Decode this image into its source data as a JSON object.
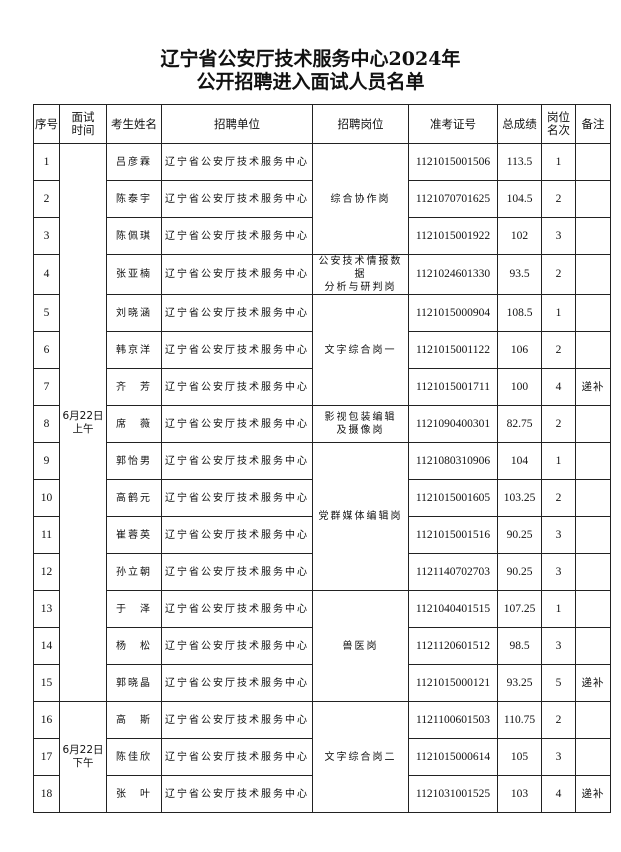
{
  "title": {
    "line1": "辽宁省公安厅技术服务中心2024年",
    "line2": "公开招聘进入面试人员名单"
  },
  "headers": [
    "序号",
    "面试\n时间",
    "考生姓名",
    "招聘单位",
    "招聘岗位",
    "准考证号",
    "总成绩",
    "岗位\n名次",
    "备注"
  ],
  "time_groups": [
    {
      "label": "6月22日\n上午",
      "rows": 15
    },
    {
      "label": "6月22日\n下午",
      "rows": 3
    }
  ],
  "position_groups": [
    {
      "label": "综合协作岗",
      "rows": 3
    },
    {
      "label": "公安技术情报数据\n分析与研判岗",
      "rows": 1
    },
    {
      "label": "文字综合岗一",
      "rows": 3
    },
    {
      "label": "影视包装编辑\n及摄像岗",
      "rows": 1
    },
    {
      "label": "党群媒体编辑岗",
      "rows": 4
    },
    {
      "label": "兽医岗",
      "rows": 3
    },
    {
      "label": "文字综合岗二",
      "rows": 3
    }
  ],
  "rows": [
    {
      "no": "1",
      "name": "吕彦霖",
      "unit": "辽宁省公安厅技术服务中心",
      "id": "1121015001506",
      "score": "113.5",
      "rank": "1",
      "note": ""
    },
    {
      "no": "2",
      "name": "陈泰宇",
      "unit": "辽宁省公安厅技术服务中心",
      "id": "1121070701625",
      "score": "104.5",
      "rank": "2",
      "note": ""
    },
    {
      "no": "3",
      "name": "陈佩琪",
      "unit": "辽宁省公安厅技术服务中心",
      "id": "1121015001922",
      "score": "102",
      "rank": "3",
      "note": ""
    },
    {
      "no": "4",
      "name": "张亚楠",
      "unit": "辽宁省公安厅技术服务中心",
      "id": "1121024601330",
      "score": "93.5",
      "rank": "2",
      "note": ""
    },
    {
      "no": "5",
      "name": "刘晓涵",
      "unit": "辽宁省公安厅技术服务中心",
      "id": "1121015000904",
      "score": "108.5",
      "rank": "1",
      "note": ""
    },
    {
      "no": "6",
      "name": "韩京洋",
      "unit": "辽宁省公安厅技术服务中心",
      "id": "1121015001122",
      "score": "106",
      "rank": "2",
      "note": ""
    },
    {
      "no": "7",
      "name": "齐　芳",
      "unit": "辽宁省公安厅技术服务中心",
      "id": "1121015001711",
      "score": "100",
      "rank": "4",
      "note": "递补"
    },
    {
      "no": "8",
      "name": "席　薇",
      "unit": "辽宁省公安厅技术服务中心",
      "id": "1121090400301",
      "score": "82.75",
      "rank": "2",
      "note": ""
    },
    {
      "no": "9",
      "name": "郭怡男",
      "unit": "辽宁省公安厅技术服务中心",
      "id": "1121080310906",
      "score": "104",
      "rank": "1",
      "note": ""
    },
    {
      "no": "10",
      "name": "高鹤元",
      "unit": "辽宁省公安厅技术服务中心",
      "id": "1121015001605",
      "score": "103.25",
      "rank": "2",
      "note": ""
    },
    {
      "no": "11",
      "name": "崔蓉英",
      "unit": "辽宁省公安厅技术服务中心",
      "id": "1121015001516",
      "score": "90.25",
      "rank": "3",
      "note": ""
    },
    {
      "no": "12",
      "name": "孙立朝",
      "unit": "辽宁省公安厅技术服务中心",
      "id": "1121140702703",
      "score": "90.25",
      "rank": "3",
      "note": ""
    },
    {
      "no": "13",
      "name": "于　泽",
      "unit": "辽宁省公安厅技术服务中心",
      "id": "1121040401515",
      "score": "107.25",
      "rank": "1",
      "note": ""
    },
    {
      "no": "14",
      "name": "杨　松",
      "unit": "辽宁省公安厅技术服务中心",
      "id": "1121120601512",
      "score": "98.5",
      "rank": "3",
      "note": ""
    },
    {
      "no": "15",
      "name": "郭晓晶",
      "unit": "辽宁省公安厅技术服务中心",
      "id": "1121015000121",
      "score": "93.25",
      "rank": "5",
      "note": "递补"
    },
    {
      "no": "16",
      "name": "高　斯",
      "unit": "辽宁省公安厅技术服务中心",
      "id": "1121100601503",
      "score": "110.75",
      "rank": "2",
      "note": ""
    },
    {
      "no": "17",
      "name": "陈佳欣",
      "unit": "辽宁省公安厅技术服务中心",
      "id": "1121015000614",
      "score": "105",
      "rank": "3",
      "note": ""
    },
    {
      "no": "18",
      "name": "张　叶",
      "unit": "辽宁省公安厅技术服务中心",
      "id": "1121031001525",
      "score": "103",
      "rank": "4",
      "note": "递补"
    }
  ]
}
